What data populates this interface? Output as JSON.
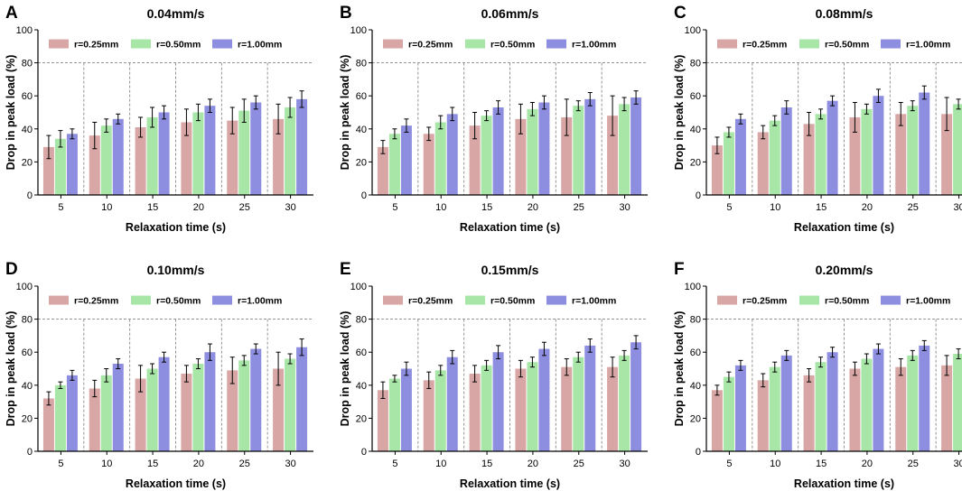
{
  "colors": {
    "r025": "#d9a6a6",
    "r050": "#a8e6a8",
    "r100": "#8e8ee0",
    "grid": "#888888",
    "axis": "#000000"
  },
  "chart_data": [
    {
      "panel": "A",
      "title": "0.04mm/s",
      "type": "bar",
      "xlabel": "Relaxation time (s)",
      "ylabel": "Drop in peak load (%)",
      "ylim": [
        0,
        100
      ],
      "yticks": [
        "0",
        "20",
        "40",
        "60",
        "80",
        "100"
      ],
      "categories": [
        "5",
        "10",
        "15",
        "20",
        "25",
        "30"
      ],
      "grid": "dashed line at 80 and between groups",
      "legend": "top",
      "series": [
        {
          "name": "r=0.25mm",
          "values": [
            29,
            36,
            41,
            44,
            45,
            46
          ],
          "errors": [
            7,
            8,
            6,
            8,
            8,
            9
          ]
        },
        {
          "name": "r=0.50mm",
          "values": [
            34,
            42,
            47,
            50,
            51,
            53
          ],
          "errors": [
            5,
            4,
            6,
            5,
            7,
            6
          ]
        },
        {
          "name": "r=1.00mm",
          "values": [
            37,
            46,
            50,
            54,
            56,
            58
          ],
          "errors": [
            3,
            3,
            4,
            4,
            4,
            5
          ]
        }
      ]
    },
    {
      "panel": "B",
      "title": "0.06mm/s",
      "type": "bar",
      "xlabel": "Relaxation time (s)",
      "ylabel": "Drop in peak load (%)",
      "ylim": [
        0,
        100
      ],
      "yticks": [
        "0",
        "20",
        "40",
        "60",
        "80",
        "100"
      ],
      "categories": [
        "5",
        "10",
        "15",
        "20",
        "25",
        "30"
      ],
      "grid": "dashed line at 80 and between groups",
      "legend": "top",
      "series": [
        {
          "name": "r=0.25mm",
          "values": [
            29,
            37,
            42,
            46,
            47,
            48
          ],
          "errors": [
            4,
            4,
            8,
            9,
            11,
            12
          ]
        },
        {
          "name": "r=0.50mm",
          "values": [
            37,
            44,
            48,
            52,
            54,
            55
          ],
          "errors": [
            3,
            4,
            3,
            4,
            3,
            4
          ]
        },
        {
          "name": "r=1.00mm",
          "values": [
            42,
            49,
            53,
            56,
            58,
            59
          ],
          "errors": [
            4,
            4,
            4,
            4,
            4,
            4
          ]
        }
      ]
    },
    {
      "panel": "C",
      "title": "0.08mm/s",
      "type": "bar",
      "xlabel": "Relaxation time (s)",
      "ylabel": "Drop in peak load (%)",
      "ylim": [
        0,
        100
      ],
      "yticks": [
        "0",
        "20",
        "40",
        "60",
        "80",
        "100"
      ],
      "categories": [
        "5",
        "10",
        "15",
        "20",
        "25",
        "30"
      ],
      "grid": "dashed line at 80 and between groups",
      "legend": "top",
      "series": [
        {
          "name": "r=0.25mm",
          "values": [
            30,
            38,
            43,
            47,
            49,
            49
          ],
          "errors": [
            5,
            4,
            7,
            9,
            7,
            10
          ]
        },
        {
          "name": "r=0.50mm",
          "values": [
            38,
            45,
            49,
            52,
            54,
            55
          ],
          "errors": [
            3,
            3,
            3,
            3,
            3,
            3
          ]
        },
        {
          "name": "r=1.00mm",
          "values": [
            46,
            53,
            57,
            60,
            62,
            63
          ],
          "errors": [
            3,
            4,
            3,
            4,
            4,
            4
          ]
        }
      ]
    },
    {
      "panel": "D",
      "title": "0.10mm/s",
      "type": "bar",
      "xlabel": "Relaxation time (s)",
      "ylabel": "Drop in peak load (%)",
      "ylim": [
        0,
        100
      ],
      "yticks": [
        "0",
        "20",
        "40",
        "60",
        "80",
        "100"
      ],
      "categories": [
        "5",
        "10",
        "15",
        "20",
        "25",
        "30"
      ],
      "grid": "dashed line at 80 and between groups",
      "legend": "top",
      "series": [
        {
          "name": "r=0.25mm",
          "values": [
            32,
            38,
            44,
            47,
            49,
            50
          ],
          "errors": [
            4,
            5,
            8,
            5,
            8,
            10
          ]
        },
        {
          "name": "r=0.50mm",
          "values": [
            40,
            46,
            50,
            53,
            55,
            56
          ],
          "errors": [
            2,
            4,
            3,
            3,
            3,
            3
          ]
        },
        {
          "name": "r=1.00mm",
          "values": [
            46,
            53,
            57,
            60,
            62,
            63
          ],
          "errors": [
            3,
            3,
            3,
            5,
            3,
            5
          ]
        }
      ]
    },
    {
      "panel": "E",
      "title": "0.15mm/s",
      "type": "bar",
      "xlabel": "Relaxation time (s)",
      "ylabel": "Drop in peak load (%)",
      "ylim": [
        0,
        100
      ],
      "yticks": [
        "0",
        "20",
        "40",
        "60",
        "80",
        "100"
      ],
      "categories": [
        "5",
        "10",
        "15",
        "20",
        "25",
        "30"
      ],
      "grid": "dashed line at 80 and between groups",
      "legend": "top",
      "series": [
        {
          "name": "r=0.25mm",
          "values": [
            37,
            43,
            47,
            50,
            51,
            51
          ],
          "errors": [
            5,
            5,
            5,
            5,
            5,
            6
          ]
        },
        {
          "name": "r=0.50mm",
          "values": [
            44,
            49,
            52,
            54,
            57,
            58
          ],
          "errors": [
            2,
            3,
            3,
            3,
            3,
            3
          ]
        },
        {
          "name": "r=1.00mm",
          "values": [
            50,
            57,
            60,
            62,
            64,
            66
          ],
          "errors": [
            4,
            4,
            4,
            4,
            4,
            4
          ]
        }
      ]
    },
    {
      "panel": "F",
      "title": "0.20mm/s",
      "type": "bar",
      "xlabel": "Relaxation time (s)",
      "ylabel": "Drop in peak load (%)",
      "ylim": [
        0,
        100
      ],
      "yticks": [
        "0",
        "20",
        "40",
        "60",
        "80",
        "100"
      ],
      "categories": [
        "5",
        "10",
        "15",
        "20",
        "25",
        "30"
      ],
      "grid": "dashed line at 80 and between groups",
      "legend": "top",
      "series": [
        {
          "name": "r=0.25mm",
          "values": [
            37,
            43,
            46,
            50,
            51,
            52
          ],
          "errors": [
            3,
            4,
            4,
            4,
            5,
            6
          ]
        },
        {
          "name": "r=0.50mm",
          "values": [
            45,
            51,
            54,
            56,
            58,
            59
          ],
          "errors": [
            3,
            3,
            3,
            3,
            3,
            3
          ]
        },
        {
          "name": "r=1.00mm",
          "values": [
            52,
            58,
            60,
            62,
            64,
            66
          ],
          "errors": [
            3,
            3,
            3,
            3,
            3,
            3
          ]
        }
      ]
    }
  ]
}
